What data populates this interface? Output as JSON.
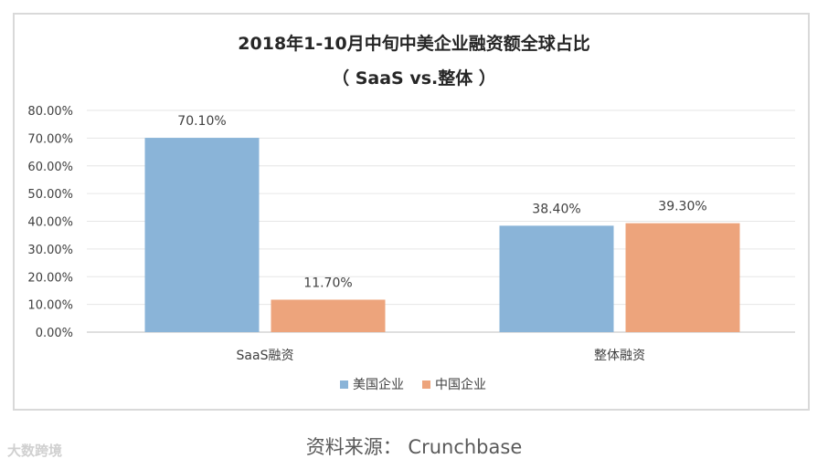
{
  "chart_data": {
    "type": "bar",
    "title": "2018年1-10月中旬中美企业融资额全球占比",
    "subtitle": "（ SaaS vs.整体 ）",
    "categories": [
      "SaaS融资",
      "整体融资"
    ],
    "series": [
      {
        "name": "美国企业",
        "values": [
          70.1,
          38.4
        ],
        "labels": [
          "70.10%",
          "38.40%"
        ],
        "color": "#8ab4d8"
      },
      {
        "name": "中国企业",
        "values": [
          11.7,
          39.3
        ],
        "labels": [
          "11.70%",
          "39.30%"
        ],
        "color": "#eda47c"
      }
    ],
    "ylim": [
      0,
      80
    ],
    "yticks": [
      "0.00%",
      "10.00%",
      "20.00%",
      "30.00%",
      "40.00%",
      "50.00%",
      "60.00%",
      "70.00%",
      "80.00%"
    ],
    "grid": true,
    "legend_position": "bottom"
  },
  "footer": {
    "source": "资料来源： Crunchbase",
    "watermark": "大数跨境"
  }
}
